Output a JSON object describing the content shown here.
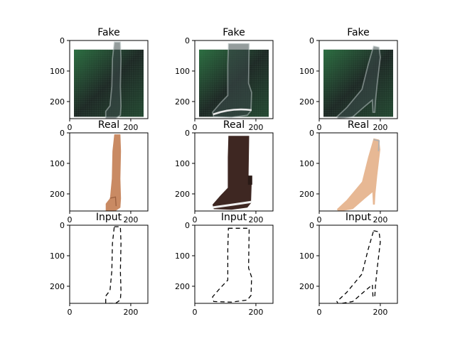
{
  "figure": {
    "background": "#ffffff",
    "panels": [
      {
        "title": "Fake",
        "row": 0,
        "col": 0,
        "kind": "fake",
        "variant": "tall-boot"
      },
      {
        "title": "Fake",
        "row": 0,
        "col": 1,
        "kind": "fake",
        "variant": "short-boot"
      },
      {
        "title": "Fake",
        "row": 0,
        "col": 2,
        "kind": "fake",
        "variant": "heel"
      },
      {
        "title": "Real",
        "row": 1,
        "col": 0,
        "kind": "real",
        "variant": "tall-boot",
        "color": "#c98a63"
      },
      {
        "title": "Real",
        "row": 1,
        "col": 1,
        "kind": "real",
        "variant": "short-boot",
        "color": "#3e2722"
      },
      {
        "title": "Real",
        "row": 1,
        "col": 2,
        "kind": "real",
        "variant": "heel",
        "color": "#e7b894"
      },
      {
        "title": "Input",
        "row": 2,
        "col": 0,
        "kind": "input",
        "variant": "tall-boot"
      },
      {
        "title": "Input",
        "row": 2,
        "col": 1,
        "kind": "input",
        "variant": "short-boot"
      },
      {
        "title": "Input",
        "row": 2,
        "col": 2,
        "kind": "input",
        "variant": "heel"
      }
    ],
    "y_ticks": [
      "0",
      "100",
      "200"
    ],
    "x_ticks": [
      "0",
      "200"
    ],
    "fake_palette": {
      "dark": "#1f2a26",
      "green": "#2f7a46",
      "light": "#c8d2d2"
    }
  }
}
